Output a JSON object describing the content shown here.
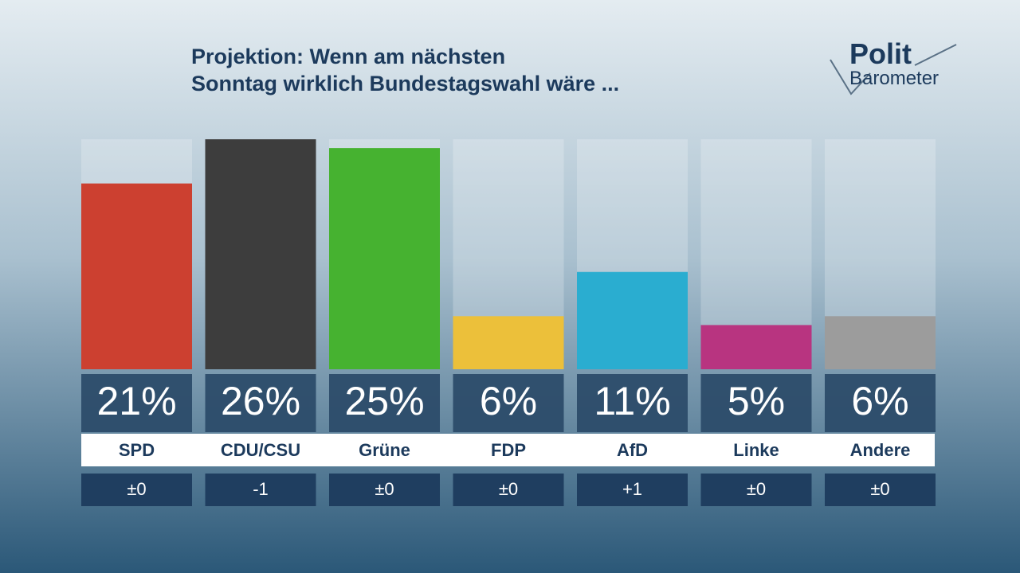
{
  "chart_data": {
    "type": "bar",
    "title": [
      "Projektion: Wenn am nächsten",
      "Sonntag wirklich Bundestagswahl wäre ..."
    ],
    "logo": [
      "Polit",
      "Barometer"
    ],
    "categories": [
      "SPD",
      "CDU/CSU",
      "Grüne",
      "FDP",
      "AfD",
      "Linke",
      "Andere"
    ],
    "values": [
      21,
      26,
      25,
      6,
      11,
      5,
      6
    ],
    "value_labels": [
      "21%",
      "26%",
      "25%",
      "6%",
      "11%",
      "5%",
      "6%"
    ],
    "colors": [
      "#cc4030",
      "#3d3d3d",
      "#46b230",
      "#ecc03a",
      "#2aadd0",
      "#b83480",
      "#9c9c9c"
    ],
    "change_labels": [
      "±0",
      "-1",
      "±0",
      "±0",
      "+1",
      "±0",
      "±0"
    ]
  }
}
